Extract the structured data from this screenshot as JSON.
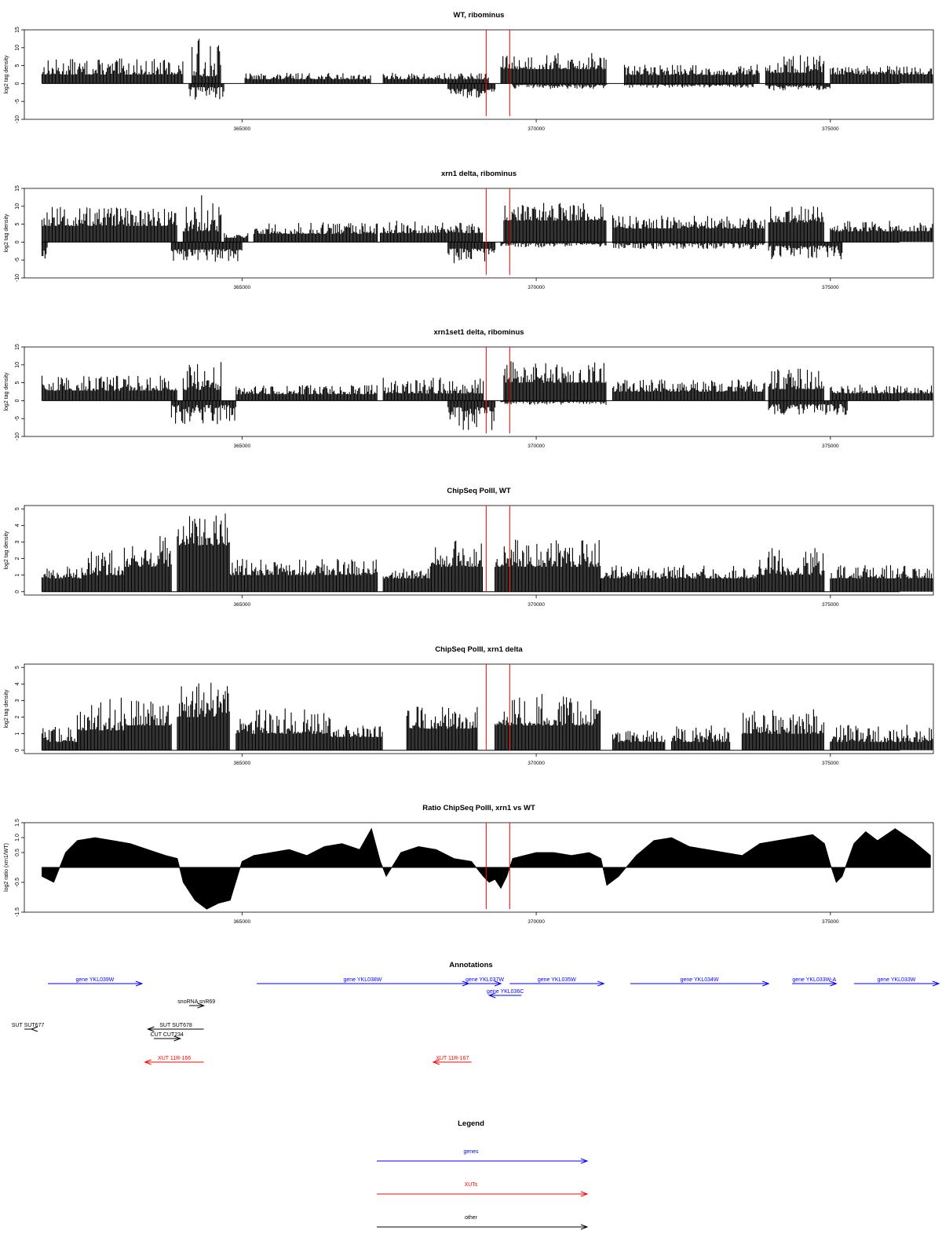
{
  "colors": {
    "gene": "#0000ff",
    "xut": "#ff0000",
    "other": "#000000",
    "marker": "#ff0000",
    "bar": "#000000"
  },
  "chart_data": [
    {
      "type": "bar",
      "title": "WT, ribominus",
      "ylabel": "log2 tag density",
      "ylim": [
        -10,
        15
      ],
      "yticks": [
        {
          "v": 15,
          "label": "15"
        },
        {
          "v": 10,
          "label": "10"
        },
        {
          "v": 5,
          "label": "5"
        },
        {
          "v": 0,
          "label": "0"
        },
        {
          "v": -5,
          "label": "-5"
        },
        {
          "v": -10,
          "label": "-10"
        }
      ],
      "xlim": [
        361300,
        376750
      ],
      "xticks": [
        {
          "v": 365000,
          "label": "365000"
        },
        {
          "v": 370000,
          "label": "370000"
        },
        {
          "v": 375000,
          "label": "375000"
        }
      ],
      "markers": [
        369150,
        369550
      ],
      "pos_segments": [
        [
          361600,
          364000,
          2.5,
          7
        ],
        [
          364150,
          364650,
          2,
          12.8
        ],
        [
          365050,
          367200,
          1.2,
          3
        ],
        [
          367400,
          369200,
          1.2,
          3
        ],
        [
          369400,
          371200,
          4,
          8.5
        ],
        [
          371500,
          373800,
          2.4,
          5.5
        ],
        [
          373900,
          374900,
          3,
          8
        ],
        [
          375000,
          376800,
          2.5,
          5
        ]
      ],
      "neg_segments": [
        [
          364100,
          364700,
          -1,
          -4.5
        ],
        [
          368500,
          369300,
          -1.5,
          -4
        ],
        [
          369600,
          371200,
          -0.3,
          -1.5
        ],
        [
          371500,
          373700,
          -0.3,
          -1.2
        ],
        [
          373900,
          375000,
          -0.5,
          -2
        ]
      ]
    },
    {
      "type": "bar",
      "title": "xrn1 delta, ribominus",
      "ylabel": "log2 tag density",
      "ylim": [
        -10,
        15
      ],
      "yticks": [
        {
          "v": 15,
          "label": "15"
        },
        {
          "v": 10,
          "label": "10"
        },
        {
          "v": 5,
          "label": "5"
        },
        {
          "v": 0,
          "label": "0"
        },
        {
          "v": -5,
          "label": "-5"
        },
        {
          "v": -10,
          "label": "-10"
        }
      ],
      "xlim": [
        361300,
        376750
      ],
      "xticks": [
        {
          "v": 365000,
          "label": "365000"
        },
        {
          "v": 370000,
          "label": "370000"
        },
        {
          "v": 375000,
          "label": "375000"
        }
      ],
      "markers": [
        369150,
        369550
      ],
      "pos_segments": [
        [
          361600,
          363900,
          4.5,
          10
        ],
        [
          364000,
          364650,
          3,
          13.8
        ],
        [
          364700,
          365100,
          1.2,
          2.5
        ],
        [
          365200,
          367300,
          2.3,
          5.5
        ],
        [
          367350,
          369100,
          2.5,
          6
        ],
        [
          369450,
          371200,
          6,
          11
        ],
        [
          371300,
          373900,
          3.8,
          7.5
        ],
        [
          373950,
          374900,
          5.5,
          10
        ],
        [
          375000,
          376800,
          3,
          6
        ]
      ],
      "neg_segments": [
        [
          361600,
          361700,
          -1.5,
          -6
        ],
        [
          363800,
          365000,
          -2,
          -5.5
        ],
        [
          368500,
          369300,
          -1.8,
          -6
        ],
        [
          369400,
          371200,
          -0.3,
          -1.5
        ],
        [
          371300,
          373900,
          -0.3,
          -2
        ],
        [
          373950,
          375200,
          -1,
          -5
        ]
      ]
    },
    {
      "type": "bar",
      "title": "xrn1set1 delta, ribominus",
      "ylabel": "log2 tag density",
      "ylim": [
        -10,
        15
      ],
      "yticks": [
        {
          "v": 15,
          "label": "15"
        },
        {
          "v": 10,
          "label": "10"
        },
        {
          "v": 5,
          "label": "5"
        },
        {
          "v": 0,
          "label": "0"
        },
        {
          "v": -5,
          "label": "-5"
        },
        {
          "v": -10,
          "label": "-10"
        }
      ],
      "xlim": [
        361300,
        376750
      ],
      "xticks": [
        {
          "v": 365000,
          "label": "365000"
        },
        {
          "v": 370000,
          "label": "370000"
        },
        {
          "v": 375000,
          "label": "375000"
        }
      ],
      "markers": [
        369150,
        369550
      ],
      "pos_segments": [
        [
          361600,
          363900,
          2.8,
          7
        ],
        [
          364000,
          364650,
          3,
          10.8
        ],
        [
          364900,
          367300,
          1.8,
          4.5
        ],
        [
          367400,
          369100,
          2,
          6.5
        ],
        [
          369450,
          371200,
          5,
          11
        ],
        [
          371300,
          373900,
          2.5,
          6
        ],
        [
          373950,
          374900,
          3.2,
          9
        ],
        [
          375000,
          376800,
          2,
          4.5
        ]
      ],
      "neg_segments": [
        [
          363800,
          364900,
          -1.2,
          -7
        ],
        [
          368500,
          369300,
          -1.8,
          -9
        ],
        [
          369400,
          371200,
          -0.3,
          -1.2
        ],
        [
          373950,
          375300,
          -1,
          -4
        ]
      ]
    },
    {
      "type": "bar",
      "title": "ChipSeq PolII, WT",
      "ylabel": "log2 tag density",
      "ylim": [
        -0.2,
        5.2
      ],
      "yticks": [
        {
          "v": 5,
          "label": "5"
        },
        {
          "v": 4,
          "label": "4"
        },
        {
          "v": 3,
          "label": "3"
        },
        {
          "v": 2,
          "label": "2"
        },
        {
          "v": 1,
          "label": "1"
        },
        {
          "v": 0,
          "label": "0"
        }
      ],
      "xlim": [
        361300,
        376750
      ],
      "xticks": [
        {
          "v": 365000,
          "label": "365000"
        },
        {
          "v": 370000,
          "label": "370000"
        },
        {
          "v": 375000,
          "label": "375000"
        }
      ],
      "markers": [
        369150,
        369550
      ],
      "pos_segments": [
        [
          361600,
          362300,
          0.8,
          1.6
        ],
        [
          362300,
          363000,
          1,
          2.6
        ],
        [
          363000,
          363800,
          1.5,
          3.5
        ],
        [
          363900,
          364800,
          2.8,
          4.9
        ],
        [
          364800,
          367300,
          1,
          2
        ],
        [
          367400,
          368200,
          0.8,
          1.4
        ],
        [
          368200,
          369100,
          1.5,
          3.2
        ],
        [
          369300,
          371100,
          1.5,
          3.2
        ],
        [
          371100,
          373800,
          0.8,
          1.6
        ],
        [
          373800,
          374900,
          1,
          2.7
        ],
        [
          375000,
          376800,
          0.8,
          1.6
        ]
      ],
      "neg_segments": []
    },
    {
      "type": "bar",
      "title": "ChipSeq PolII, xrn1 delta",
      "ylabel": "log2 tag density",
      "ylim": [
        -0.2,
        5.2
      ],
      "yticks": [
        {
          "v": 5,
          "label": "5"
        },
        {
          "v": 4,
          "label": "4"
        },
        {
          "v": 3,
          "label": "3"
        },
        {
          "v": 2,
          "label": "2"
        },
        {
          "v": 1,
          "label": "1"
        },
        {
          "v": 0,
          "label": "0"
        }
      ],
      "xlim": [
        361300,
        376750
      ],
      "xticks": [
        {
          "v": 365000,
          "label": "365000"
        },
        {
          "v": 370000,
          "label": "370000"
        },
        {
          "v": 375000,
          "label": "375000"
        }
      ],
      "markers": [
        369150,
        369550
      ],
      "pos_segments": [
        [
          361600,
          362200,
          0.5,
          1.5
        ],
        [
          362200,
          363000,
          1.2,
          3.2
        ],
        [
          363000,
          363800,
          1.5,
          3.1
        ],
        [
          363900,
          364800,
          2,
          4.1
        ],
        [
          364900,
          366500,
          1,
          2.6
        ],
        [
          366500,
          367400,
          0.8,
          1.5
        ],
        [
          367800,
          369000,
          1.3,
          2.7
        ],
        [
          369300,
          371100,
          1.5,
          3.4
        ],
        [
          371300,
          372200,
          0.5,
          1.3
        ],
        [
          372300,
          373300,
          0.5,
          1.5
        ],
        [
          373500,
          374900,
          1,
          2.5
        ],
        [
          375000,
          376800,
          0.5,
          1.6
        ]
      ],
      "neg_segments": []
    },
    {
      "type": "area",
      "title": "Ratio ChipSeq PolII, xrn1 vs WT",
      "ylabel": "log2 ratio (xrn1/WT)",
      "ylim": [
        -1.5,
        1.5
      ],
      "yticks": [
        {
          "v": 1.5,
          "label": "1.5"
        },
        {
          "v": 1.0,
          "label": "1.0"
        },
        {
          "v": 0.5,
          "label": "0.5"
        },
        {
          "v": -0.5,
          "label": "-0.5"
        },
        {
          "v": -1.5,
          "label": "-1.5"
        }
      ],
      "xlim": [
        361300,
        376750
      ],
      "xticks": [
        {
          "v": 365000,
          "label": "365000"
        },
        {
          "v": 370000,
          "label": "370000"
        },
        {
          "v": 375000,
          "label": "375000"
        }
      ],
      "markers": [
        369150,
        369550
      ],
      "x": [
        361600,
        361800,
        362000,
        362200,
        362500,
        362800,
        363100,
        363400,
        363700,
        363900,
        364000,
        364200,
        364400,
        364600,
        364800,
        365000,
        365200,
        365500,
        365800,
        366100,
        366400,
        366700,
        367000,
        367200,
        367350,
        367450,
        367700,
        368000,
        368300,
        368600,
        368900,
        369100,
        369200,
        369300,
        369400,
        369500,
        369600,
        369800,
        370000,
        370300,
        370600,
        370900,
        371100,
        371200,
        371400,
        371700,
        372000,
        372300,
        372600,
        372900,
        373200,
        373500,
        373800,
        374100,
        374400,
        374700,
        374900,
        375000,
        375100,
        375200,
        375400,
        375600,
        375800,
        376100,
        376400,
        376700
      ],
      "y": [
        -0.3,
        -0.5,
        0.5,
        0.9,
        1.0,
        0.9,
        0.8,
        0.6,
        0.4,
        0.3,
        -0.5,
        -1.1,
        -1.4,
        -1.2,
        -1.1,
        0.2,
        0.4,
        0.5,
        0.6,
        0.4,
        0.7,
        0.8,
        0.6,
        1.3,
        0.2,
        -0.3,
        0.5,
        0.7,
        0.6,
        0.3,
        0.2,
        -0.3,
        -0.5,
        -0.4,
        -0.7,
        -0.3,
        0.3,
        0.4,
        0.5,
        0.5,
        0.4,
        0.5,
        0.3,
        -0.6,
        -0.3,
        0.4,
        0.9,
        1.0,
        0.7,
        0.6,
        0.5,
        0.4,
        0.8,
        0.9,
        1.0,
        1.1,
        0.8,
        0.1,
        -0.5,
        -0.3,
        0.8,
        1.2,
        0.9,
        1.3,
        0.9,
        0.4
      ]
    }
  ],
  "annotations": {
    "title": "Annotations",
    "items": [
      {
        "label": "gene YKL039W",
        "type": "gene",
        "start": 361700,
        "end": 363300,
        "dir": 1,
        "row": 0
      },
      {
        "label": "gene YKL038W",
        "type": "gene",
        "start": 365250,
        "end": 368850,
        "dir": 1,
        "row": 0
      },
      {
        "label": "gene YKL037W",
        "type": "gene",
        "start": 368850,
        "end": 369400,
        "dir": 1,
        "row": 0
      },
      {
        "label": "gene YKL036C",
        "type": "gene",
        "start": 369200,
        "end": 369750,
        "dir": -1,
        "row": 1
      },
      {
        "label": "gene YKL035W",
        "type": "gene",
        "start": 369550,
        "end": 371150,
        "dir": 1,
        "row": 0
      },
      {
        "label": "gene YKL034W",
        "type": "gene",
        "start": 371600,
        "end": 373950,
        "dir": 1,
        "row": 0
      },
      {
        "label": "gene YKL033W-A",
        "type": "gene",
        "start": 374350,
        "end": 375100,
        "dir": 1,
        "row": 0
      },
      {
        "label": "gene YKL033W",
        "type": "gene",
        "start": 375400,
        "end": 377400,
        "dir": 1,
        "row": 0
      },
      {
        "label": "snoRNA snR69",
        "type": "other",
        "start": 364100,
        "end": 364350,
        "dir": 1,
        "row": 2
      },
      {
        "label": "SUT SUT677",
        "type": "other",
        "start": 360700,
        "end": 361300,
        "dir": -1,
        "row": 3
      },
      {
        "label": "SUT SUT678",
        "type": "other",
        "start": 363400,
        "end": 364350,
        "dir": -1,
        "row": 3
      },
      {
        "label": "CUT CUT234",
        "type": "other",
        "start": 363500,
        "end": 363950,
        "dir": 1,
        "row": 4
      },
      {
        "label": "XUT 11R-166",
        "type": "xut",
        "start": 363350,
        "end": 364350,
        "dir": -1,
        "row": 5
      },
      {
        "label": "XUT 11R-167",
        "type": "xut",
        "start": 368250,
        "end": 368900,
        "dir": -1,
        "row": 5
      }
    ]
  },
  "legend": {
    "title": "Legend",
    "items": [
      {
        "label": "genes",
        "type": "gene"
      },
      {
        "label": "XUTs",
        "type": "xut"
      },
      {
        "label": "other",
        "type": "other"
      }
    ]
  }
}
